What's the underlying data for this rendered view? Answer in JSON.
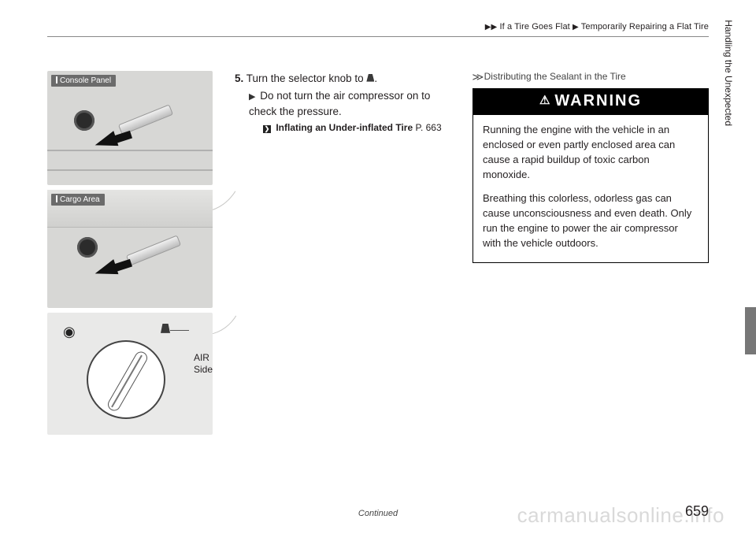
{
  "breadcrumb": {
    "level1": "If a Tire Goes Flat",
    "level2": "Temporarily Repairing a Flat Tire"
  },
  "left_column": {
    "console_label": "Console Panel",
    "cargo_label": "Cargo Area",
    "air_label_line1": "AIR",
    "air_label_line2": "Side"
  },
  "step": {
    "number": "5.",
    "text_a": "Turn the selector knob to ",
    "text_b": ".",
    "sub": "Do not turn the air compressor on to check the pressure.",
    "xref_title": "Inflating an Under-inflated Tire",
    "xref_page": "P. 663"
  },
  "sidebar": {
    "heading": "Distributing the Sealant in the Tire",
    "warning_title": "WARNING",
    "p1": "Running the engine with the vehicle in an enclosed or even partly enclosed area can cause a rapid buildup of toxic carbon monoxide.",
    "p2": "Breathing this colorless, odorless gas can cause unconsciousness and even death. Only run the engine to power the air compressor with the vehicle outdoors."
  },
  "section_tab": "Handling the Unexpected",
  "footer": {
    "continued": "Continued",
    "page": "659"
  },
  "watermark": "carmanualsonline.info",
  "colors": {
    "text": "#231f20",
    "rule": "#888888",
    "label_bg": "#6b6b6b",
    "tab_bg": "#777777",
    "img_bg": "#d7d7d5",
    "dial_bg": "#e9e9e8"
  }
}
